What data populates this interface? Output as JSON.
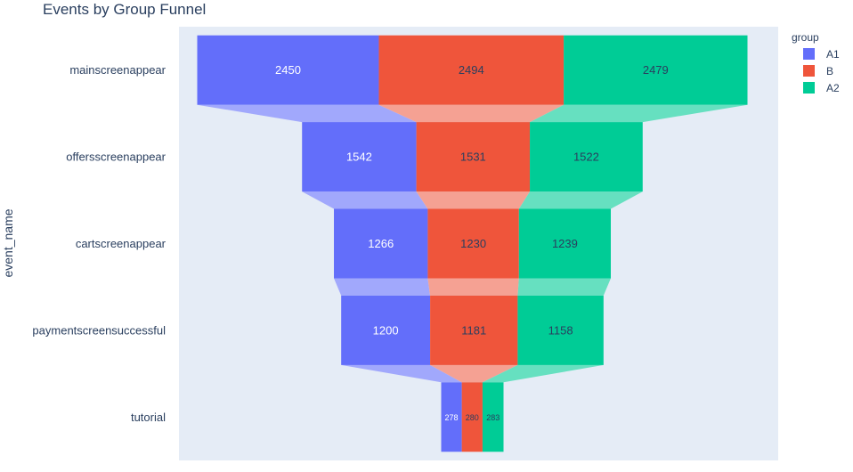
{
  "chart_data": {
    "type": "funnel",
    "title": "Events by Group Funnel",
    "ylabel": "event_name",
    "categories": [
      "mainscreenappear",
      "offersscreenappear",
      "cartscreenappear",
      "paymentscreensuccessful",
      "tutorial"
    ],
    "series": [
      {
        "name": "A1",
        "values": [
          2450,
          1542,
          1266,
          1200,
          278
        ],
        "color": "#636efa",
        "connector_color": "#a1a8fc",
        "label_color": "#ffffff"
      },
      {
        "name": "B",
        "values": [
          2494,
          1531,
          1230,
          1181,
          280
        ],
        "color": "#ef553b",
        "connector_color": "#f5a193",
        "label_color": "#2a3f5f"
      },
      {
        "name": "A2",
        "values": [
          2479,
          1522,
          1239,
          1158,
          283
        ],
        "color": "#00cc96",
        "connector_color": "#66e0c0",
        "label_color": "#2a3f5f"
      }
    ],
    "legend": {
      "title": "group",
      "position": "top-right"
    },
    "plot_background": "#e5ecf6",
    "text_color": "#2a3f5f"
  }
}
